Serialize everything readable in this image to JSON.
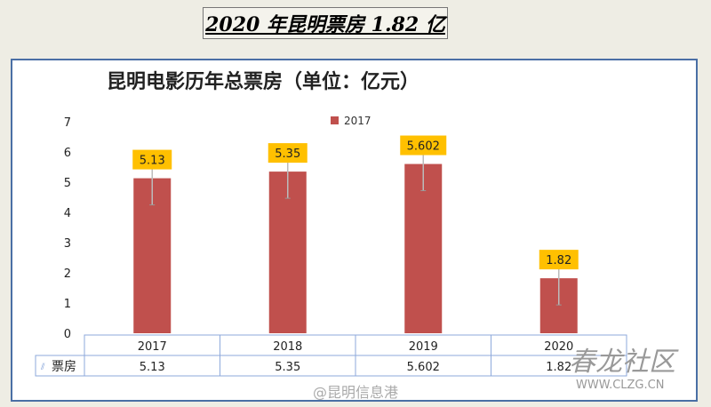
{
  "headline": "2020 年昆明票房 1.82 亿",
  "chart_data": {
    "type": "bar",
    "title": "昆明电影历年总票房（单位：亿元）",
    "categories": [
      "2017",
      "2018",
      "2019",
      "2020"
    ],
    "values": [
      5.13,
      5.35,
      5.602,
      1.82
    ],
    "data_labels": [
      "5.13",
      "5.35",
      "5.602",
      "1.82"
    ],
    "legend": [
      "2017"
    ],
    "legend_position": "top-center",
    "ylim": [
      0,
      7
    ],
    "yticks": [
      "0",
      "1",
      "2",
      "3",
      "4",
      "5",
      "6",
      "7"
    ],
    "table_row_label": "票房",
    "table_values": [
      "5.13",
      "5.35",
      "5.602",
      "1.82"
    ],
    "bar_color": "#c0504d",
    "label_bg": "#ffc000"
  },
  "watermarks": [
    "@昆明信息港",
    "春龙社区",
    "WWW.CLZG.CN"
  ]
}
